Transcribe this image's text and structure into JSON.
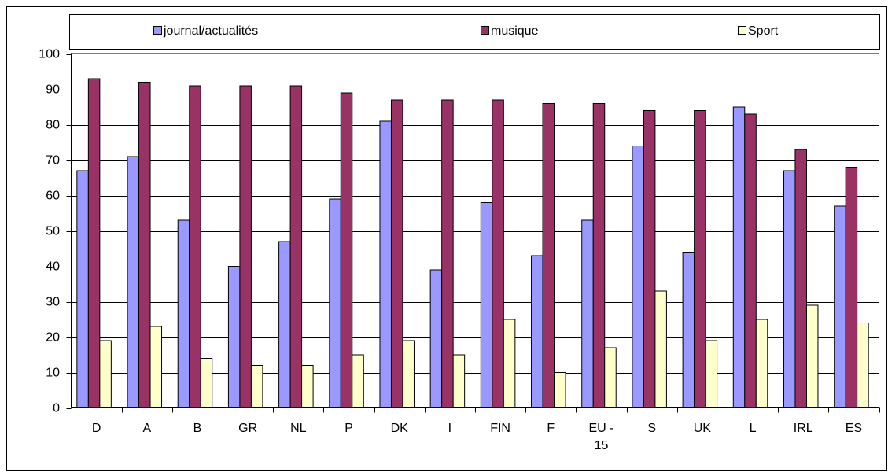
{
  "chart_data": {
    "type": "bar",
    "categories": [
      "D",
      "A",
      "B",
      "GR",
      "NL",
      "P",
      "DK",
      "I",
      "FIN",
      "F",
      "EU - 15",
      "S",
      "UK",
      "L",
      "IRL",
      "ES"
    ],
    "series": [
      {
        "name": "journal/actualités",
        "color": "#9999ff",
        "values": [
          67,
          71,
          53,
          40,
          47,
          59,
          81,
          39,
          58,
          43,
          53,
          74,
          44,
          85,
          67,
          57
        ]
      },
      {
        "name": "musique",
        "color": "#993366",
        "values": [
          93,
          92,
          91,
          91,
          91,
          89,
          87,
          87,
          87,
          86,
          86,
          84,
          84,
          83,
          73,
          68
        ]
      },
      {
        "name": "Sport",
        "color": "#ffffcc",
        "values": [
          19,
          23,
          14,
          12,
          12,
          15,
          19,
          15,
          25,
          10,
          17,
          33,
          19,
          25,
          29,
          24
        ]
      }
    ],
    "ylim": [
      0,
      100
    ],
    "yticks": [
      0,
      10,
      20,
      30,
      40,
      50,
      60,
      70,
      80,
      90,
      100
    ],
    "grid": true,
    "legend_position": "top"
  }
}
